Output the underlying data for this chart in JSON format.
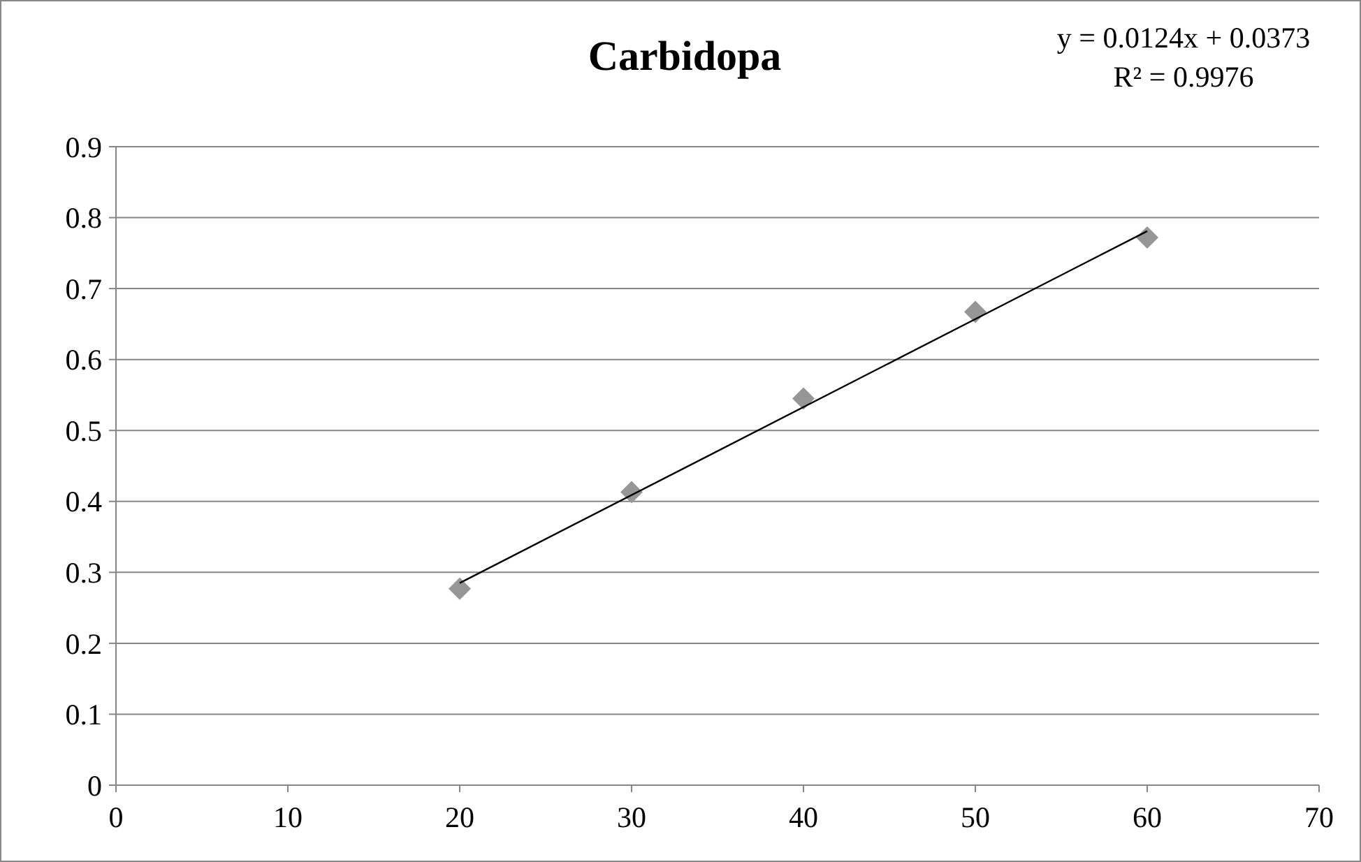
{
  "chart_data": {
    "type": "scatter",
    "title": "Carbidopa",
    "annotations": [
      "y = 0.0124x + 0.0373",
      "R² = 0.9976"
    ],
    "x": [
      20,
      30,
      40,
      50,
      60
    ],
    "series": [
      {
        "color": "#969696",
        "marker": "diamond",
        "values": [
          0.277,
          0.413,
          0.545,
          0.667,
          0.772
        ]
      },
      {
        "type": "line",
        "color": "#000000",
        "marker": "none",
        "x": [
          20,
          60
        ],
        "values": [
          0.285,
          0.781
        ]
      }
    ],
    "xlim": [
      0,
      70
    ],
    "xticks": [
      0,
      10,
      20,
      30,
      40,
      50,
      60,
      70
    ],
    "ylim": [
      0,
      0.9
    ],
    "yticks": [
      0,
      0.1,
      0.2,
      0.3,
      0.4,
      0.5,
      0.6,
      0.7,
      0.8,
      0.9
    ],
    "grid": "y"
  }
}
